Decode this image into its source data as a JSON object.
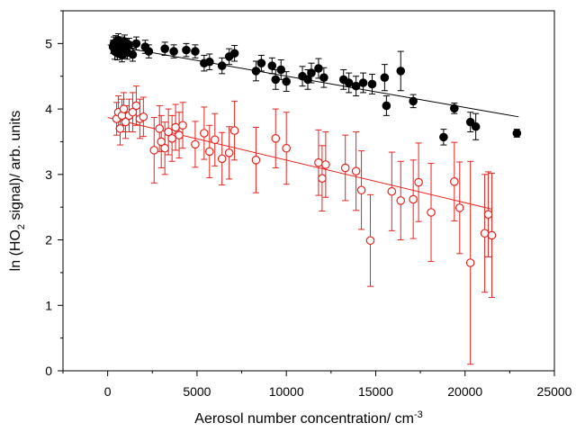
{
  "chart_data": {
    "type": "scatter",
    "xlabel": "Aerosol number concentration/ cm",
    "xlabel_superscript": "-3",
    "ylabel_prefix": "ln (HO",
    "ylabel_subscript": "2",
    "ylabel_suffix": " signal)/ arb. units",
    "xlim": [
      -2500,
      25000
    ],
    "ylim": [
      0,
      5.5
    ],
    "x_ticks": [
      0,
      5000,
      10000,
      15000,
      20000,
      25000
    ],
    "y_ticks": [
      0,
      1,
      2,
      3,
      4,
      5
    ],
    "grid": false,
    "legend": "none",
    "series": [
      {
        "style": "filled-circle",
        "color": "#000000",
        "fit": {
          "x": [
            0,
            23000
          ],
          "y": [
            4.98,
            3.88
          ]
        },
        "points": [
          {
            "x": 300,
            "y": 4.95,
            "err": 0.1
          },
          {
            "x": 350,
            "y": 5.0,
            "err": 0.1
          },
          {
            "x": 400,
            "y": 4.88,
            "err": 0.12
          },
          {
            "x": 450,
            "y": 5.02,
            "err": 0.1
          },
          {
            "x": 500,
            "y": 4.92,
            "err": 0.1
          },
          {
            "x": 550,
            "y": 4.85,
            "err": 0.1
          },
          {
            "x": 600,
            "y": 5.05,
            "err": 0.1
          },
          {
            "x": 650,
            "y": 4.97,
            "err": 0.1
          },
          {
            "x": 700,
            "y": 4.9,
            "err": 0.1
          },
          {
            "x": 750,
            "y": 5.0,
            "err": 0.1
          },
          {
            "x": 800,
            "y": 4.82,
            "err": 0.1
          },
          {
            "x": 850,
            "y": 4.95,
            "err": 0.1
          },
          {
            "x": 900,
            "y": 4.88,
            "err": 0.1
          },
          {
            "x": 950,
            "y": 5.03,
            "err": 0.1
          },
          {
            "x": 1000,
            "y": 4.93,
            "err": 0.1
          },
          {
            "x": 1100,
            "y": 4.86,
            "err": 0.1
          },
          {
            "x": 1200,
            "y": 4.98,
            "err": 0.1
          },
          {
            "x": 1400,
            "y": 4.83,
            "err": 0.1
          },
          {
            "x": 1600,
            "y": 5.0,
            "err": 0.1
          },
          {
            "x": 2100,
            "y": 4.95,
            "err": 0.1
          },
          {
            "x": 2300,
            "y": 4.88,
            "err": 0.1
          },
          {
            "x": 3200,
            "y": 4.92,
            "err": 0.1
          },
          {
            "x": 3700,
            "y": 4.88,
            "err": 0.1
          },
          {
            "x": 4400,
            "y": 4.9,
            "err": 0.1
          },
          {
            "x": 4900,
            "y": 4.88,
            "err": 0.1
          },
          {
            "x": 5400,
            "y": 4.7,
            "err": 0.12
          },
          {
            "x": 5700,
            "y": 4.72,
            "err": 0.12
          },
          {
            "x": 6400,
            "y": 4.66,
            "err": 0.12
          },
          {
            "x": 6800,
            "y": 4.8,
            "err": 0.12
          },
          {
            "x": 7100,
            "y": 4.85,
            "err": 0.12
          },
          {
            "x": 8300,
            "y": 4.58,
            "err": 0.15
          },
          {
            "x": 8600,
            "y": 4.7,
            "err": 0.12
          },
          {
            "x": 9200,
            "y": 4.66,
            "err": 0.12
          },
          {
            "x": 9400,
            "y": 4.45,
            "err": 0.15
          },
          {
            "x": 9700,
            "y": 4.6,
            "err": 0.15
          },
          {
            "x": 10000,
            "y": 4.42,
            "err": 0.15
          },
          {
            "x": 10900,
            "y": 4.5,
            "err": 0.15
          },
          {
            "x": 11200,
            "y": 4.45,
            "err": 0.15
          },
          {
            "x": 11400,
            "y": 4.55,
            "err": 0.15
          },
          {
            "x": 11800,
            "y": 4.62,
            "err": 0.15
          },
          {
            "x": 12100,
            "y": 4.48,
            "err": 0.15
          },
          {
            "x": 13200,
            "y": 4.45,
            "err": 0.15
          },
          {
            "x": 13500,
            "y": 4.4,
            "err": 0.15
          },
          {
            "x": 13900,
            "y": 4.35,
            "err": 0.15
          },
          {
            "x": 14300,
            "y": 4.4,
            "err": 0.15
          },
          {
            "x": 14800,
            "y": 4.38,
            "err": 0.15
          },
          {
            "x": 15500,
            "y": 4.48,
            "err": 0.2
          },
          {
            "x": 15600,
            "y": 4.05,
            "err": 0.15
          },
          {
            "x": 16400,
            "y": 4.58,
            "err": 0.3
          },
          {
            "x": 17100,
            "y": 4.12,
            "err": 0.1
          },
          {
            "x": 18800,
            "y": 3.57,
            "err": 0.12
          },
          {
            "x": 19400,
            "y": 4.01,
            "err": 0.08
          },
          {
            "x": 20300,
            "y": 3.8,
            "err": 0.15
          },
          {
            "x": 20600,
            "y": 3.73,
            "err": 0.2
          },
          {
            "x": 22900,
            "y": 3.63,
            "err": 0.06
          }
        ]
      },
      {
        "style": "open-circle",
        "color": "#e8231d",
        "fit": {
          "x": [
            0,
            21500
          ],
          "y": [
            3.87,
            2.47
          ]
        },
        "points": [
          {
            "x": 500,
            "y": 3.85,
            "err": 0.25
          },
          {
            "x": 600,
            "y": 3.95,
            "err": 0.25
          },
          {
            "x": 700,
            "y": 3.7,
            "err": 0.25
          },
          {
            "x": 800,
            "y": 3.9,
            "err": 0.25
          },
          {
            "x": 900,
            "y": 4.0,
            "err": 0.25
          },
          {
            "x": 1000,
            "y": 3.8,
            "err": 0.25
          },
          {
            "x": 1200,
            "y": 3.9,
            "err": 0.25
          },
          {
            "x": 1400,
            "y": 3.95,
            "err": 0.3
          },
          {
            "x": 1600,
            "y": 4.05,
            "err": 0.3
          },
          {
            "x": 1800,
            "y": 3.85,
            "err": 0.3
          },
          {
            "x": 2000,
            "y": 3.88,
            "err": 0.3
          },
          {
            "x": 2600,
            "y": 3.37,
            "err": 0.5
          },
          {
            "x": 2900,
            "y": 3.7,
            "err": 0.35
          },
          {
            "x": 3000,
            "y": 3.5,
            "err": 0.4
          },
          {
            "x": 3200,
            "y": 3.4,
            "err": 0.4
          },
          {
            "x": 3400,
            "y": 3.65,
            "err": 0.35
          },
          {
            "x": 3600,
            "y": 3.55,
            "err": 0.35
          },
          {
            "x": 3800,
            "y": 3.72,
            "err": 0.35
          },
          {
            "x": 4000,
            "y": 3.6,
            "err": 0.35
          },
          {
            "x": 4200,
            "y": 3.75,
            "err": 0.35
          },
          {
            "x": 4900,
            "y": 3.46,
            "err": 0.35
          },
          {
            "x": 5400,
            "y": 3.63,
            "err": 0.4
          },
          {
            "x": 5700,
            "y": 3.35,
            "err": 0.4
          },
          {
            "x": 6000,
            "y": 3.53,
            "err": 0.4
          },
          {
            "x": 6400,
            "y": 3.24,
            "err": 0.4
          },
          {
            "x": 6800,
            "y": 3.33,
            "err": 0.4
          },
          {
            "x": 7100,
            "y": 3.67,
            "err": 0.45
          },
          {
            "x": 8300,
            "y": 3.22,
            "err": 0.5
          },
          {
            "x": 9400,
            "y": 3.55,
            "err": 0.45
          },
          {
            "x": 10000,
            "y": 3.4,
            "err": 0.55
          },
          {
            "x": 11800,
            "y": 3.18,
            "err": 0.5
          },
          {
            "x": 12000,
            "y": 2.94,
            "err": 0.5
          },
          {
            "x": 12200,
            "y": 3.15,
            "err": 0.5
          },
          {
            "x": 13300,
            "y": 3.1,
            "err": 0.5
          },
          {
            "x": 13900,
            "y": 3.05,
            "err": 0.6
          },
          {
            "x": 14200,
            "y": 2.76,
            "err": 0.6
          },
          {
            "x": 14700,
            "y": 1.99,
            "err": 0.7
          },
          {
            "x": 15900,
            "y": 2.74,
            "err": 0.6
          },
          {
            "x": 16400,
            "y": 2.6,
            "err": 0.6
          },
          {
            "x": 17100,
            "y": 2.62,
            "err": 0.6
          },
          {
            "x": 17400,
            "y": 2.88,
            "err": 0.6
          },
          {
            "x": 18100,
            "y": 2.42,
            "err": 0.75
          },
          {
            "x": 19400,
            "y": 2.89,
            "err": 0.6
          },
          {
            "x": 19700,
            "y": 2.49,
            "err": 0.7
          },
          {
            "x": 20300,
            "y": 1.65,
            "err": 1.55
          },
          {
            "x": 21100,
            "y": 2.1,
            "err": 0.9
          },
          {
            "x": 21300,
            "y": 2.39,
            "err": 0.65
          },
          {
            "x": 21500,
            "y": 2.07,
            "err": 0.95
          }
        ]
      }
    ]
  }
}
